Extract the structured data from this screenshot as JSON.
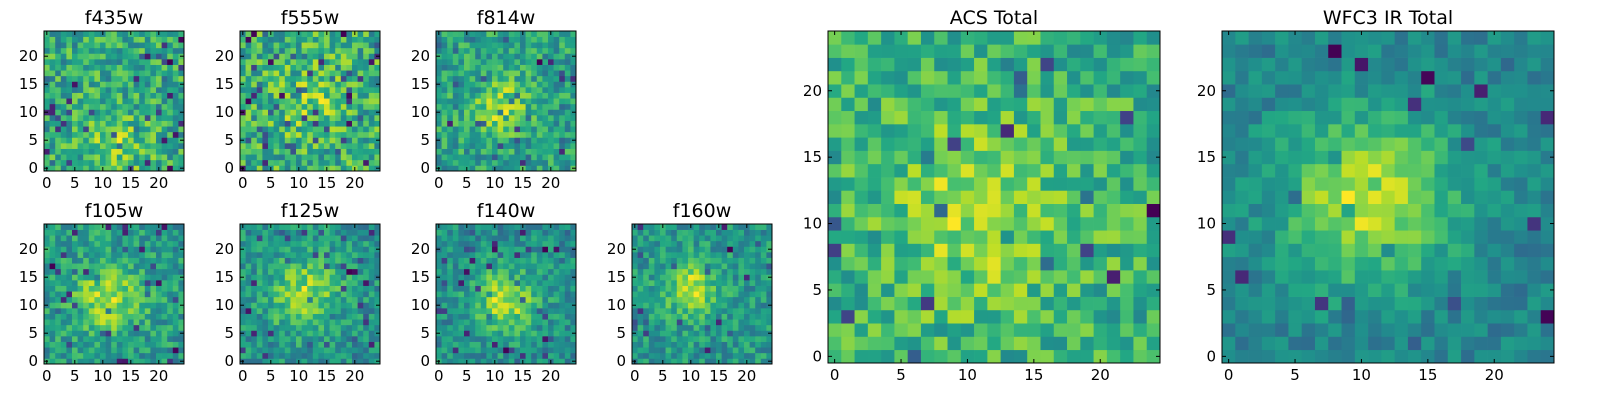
{
  "figure": {
    "title_note": ""
  },
  "chart_data": [
    {
      "type": "heatmap",
      "title": "f435w",
      "x": {
        "ticks": [
          0,
          5,
          10,
          15,
          20
        ],
        "range": [
          -0.5,
          24.5
        ]
      },
      "y": {
        "ticks": [
          0,
          5,
          10,
          15,
          20
        ],
        "range": [
          -0.5,
          24.5
        ]
      },
      "grid_size": [
        25,
        25
      ],
      "colormap": "viridis",
      "grid": false,
      "values": "pixel noise image (approximate); generated procedurally",
      "seed": 11,
      "peak": [
        12,
        4
      ],
      "peak_strength": 0.35,
      "peak_sigma": 4.0,
      "noise": 0.55,
      "bad_pixel_rate": 0.08
    },
    {
      "type": "heatmap",
      "title": "f555w",
      "x": {
        "ticks": [
          0,
          5,
          10,
          15,
          20
        ],
        "range": [
          -0.5,
          24.5
        ]
      },
      "y": {
        "ticks": [
          0,
          5,
          10,
          15,
          20
        ],
        "range": [
          -0.5,
          24.5
        ]
      },
      "grid_size": [
        25,
        25
      ],
      "colormap": "viridis",
      "grid": false,
      "values": "pixel noise image (approximate); generated procedurally",
      "seed": 23,
      "peak": [
        12,
        12
      ],
      "peak_strength": 0.25,
      "peak_sigma": 4.0,
      "noise": 0.55,
      "bad_pixel_rate": 0.08
    },
    {
      "type": "heatmap",
      "title": "f814w",
      "x": {
        "ticks": [
          0,
          5,
          10,
          15,
          20
        ],
        "range": [
          -0.5,
          24.5
        ]
      },
      "y": {
        "ticks": [
          0,
          5,
          10,
          15,
          20
        ],
        "range": [
          -0.5,
          24.5
        ]
      },
      "grid_size": [
        25,
        25
      ],
      "colormap": "viridis",
      "grid": false,
      "values": "pixel noise image (approximate); generated procedurally",
      "seed": 37,
      "peak": [
        11,
        11
      ],
      "peak_strength": 0.55,
      "peak_sigma": 3.5,
      "noise": 0.5,
      "bad_pixel_rate": 0.07
    },
    {
      "type": "heatmap",
      "title": "f105w",
      "x": {
        "ticks": [
          0,
          5,
          10,
          15,
          20
        ],
        "range": [
          -0.5,
          24.5
        ]
      },
      "y": {
        "ticks": [
          0,
          5,
          10,
          15,
          20
        ],
        "range": [
          -0.5,
          24.5
        ]
      },
      "grid_size": [
        25,
        25
      ],
      "colormap": "viridis",
      "grid": false,
      "values": "pixel noise image (approximate); generated procedurally",
      "seed": 41,
      "peak": [
        11,
        11
      ],
      "peak_strength": 0.6,
      "peak_sigma": 4.0,
      "noise": 0.45,
      "bad_pixel_rate": 0.06
    },
    {
      "type": "heatmap",
      "title": "f125w",
      "x": {
        "ticks": [
          0,
          5,
          10,
          15,
          20
        ],
        "range": [
          -0.5,
          24.5
        ]
      },
      "y": {
        "ticks": [
          0,
          5,
          10,
          15,
          20
        ],
        "range": [
          -0.5,
          24.5
        ]
      },
      "grid_size": [
        25,
        25
      ],
      "colormap": "viridis",
      "grid": false,
      "values": "pixel noise image (approximate); generated procedurally",
      "seed": 53,
      "peak": [
        11,
        12
      ],
      "peak_strength": 0.6,
      "peak_sigma": 4.5,
      "noise": 0.42,
      "bad_pixel_rate": 0.06
    },
    {
      "type": "heatmap",
      "title": "f140w",
      "x": {
        "ticks": [
          0,
          5,
          10,
          15,
          20
        ],
        "range": [
          -0.5,
          24.5
        ]
      },
      "y": {
        "ticks": [
          0,
          5,
          10,
          15,
          20
        ],
        "range": [
          -0.5,
          24.5
        ]
      },
      "grid_size": [
        25,
        25
      ],
      "colormap": "viridis",
      "grid": false,
      "values": "pixel noise image (approximate); generated procedurally",
      "seed": 67,
      "peak": [
        12,
        11
      ],
      "peak_strength": 0.7,
      "peak_sigma": 4.0,
      "noise": 0.4,
      "bad_pixel_rate": 0.05
    },
    {
      "type": "heatmap",
      "title": "f160w",
      "x": {
        "ticks": [
          0,
          5,
          10,
          15,
          20
        ],
        "range": [
          -0.5,
          24.5
        ]
      },
      "y": {
        "ticks": [
          0,
          5,
          10,
          15,
          20
        ],
        "range": [
          -0.5,
          24.5
        ]
      },
      "grid_size": [
        25,
        25
      ],
      "colormap": "viridis",
      "grid": false,
      "values": "pixel noise image (approximate); generated procedurally",
      "seed": 79,
      "peak": [
        10,
        13
      ],
      "peak_strength": 0.65,
      "peak_sigma": 3.2,
      "noise": 0.4,
      "bad_pixel_rate": 0.05
    },
    {
      "type": "heatmap",
      "title": "ACS Total",
      "x": {
        "ticks": [
          0,
          5,
          10,
          15,
          20
        ],
        "range": [
          -0.5,
          24.5
        ]
      },
      "y": {
        "ticks": [
          0,
          5,
          10,
          15,
          20
        ],
        "range": [
          -0.5,
          24.5
        ]
      },
      "grid_size": [
        25,
        25
      ],
      "colormap": "viridis",
      "grid": false,
      "values": "pixel noise image (approximate); generated procedurally",
      "seed": 97,
      "peak": [
        11,
        11
      ],
      "peak_strength": 0.35,
      "peak_sigma": 5.0,
      "noise": 0.38,
      "bad_pixel_rate": 0.04
    },
    {
      "type": "heatmap",
      "title": "WFC3 IR Total",
      "x": {
        "ticks": [
          0,
          5,
          10,
          15,
          20
        ],
        "range": [
          -0.5,
          24.5
        ]
      },
      "y": {
        "ticks": [
          0,
          5,
          10,
          15,
          20
        ],
        "range": [
          -0.5,
          24.5
        ]
      },
      "grid_size": [
        25,
        25
      ],
      "colormap": "viridis",
      "grid": false,
      "values": "pixel noise image (approximate); generated procedurally",
      "seed": 113,
      "peak": [
        10.5,
        12
      ],
      "peak_strength": 0.85,
      "peak_sigma": 4.5,
      "noise": 0.28,
      "bad_pixel_rate": 0.035
    }
  ]
}
